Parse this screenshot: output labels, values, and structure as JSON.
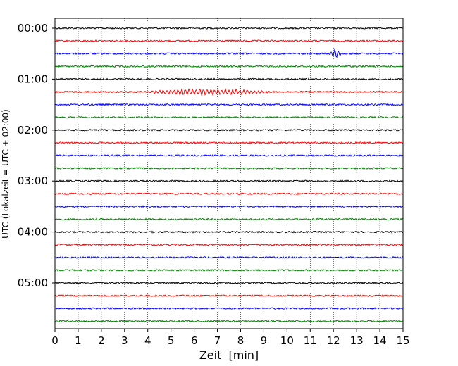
{
  "chart_data": {
    "type": "line",
    "title": "",
    "xlabel": "Zeit  [min]",
    "ylabel": "UTC (Lokalzeit = UTC + 02:00)",
    "xlim": [
      0,
      15
    ],
    "x_ticks": [
      "0",
      "1",
      "2",
      "3",
      "4",
      "5",
      "6",
      "7",
      "8",
      "9",
      "10",
      "11",
      "12",
      "13",
      "14",
      "15"
    ],
    "y_tick_labels": [
      "00:00",
      "01:00",
      "02:00",
      "03:00",
      "04:00",
      "05:00"
    ],
    "trace_interval_min": 15,
    "trace_count": 24,
    "trace_colors": [
      "#000000",
      "#ff0000",
      "#0000ff",
      "#008000"
    ],
    "grid": "vertical dotted at each minute",
    "events": [
      {
        "trace": 2,
        "start_min": 11.8,
        "end_min": 12.4,
        "amplitude": 5
      },
      {
        "trace": 5,
        "start_min": 3.5,
        "end_min": 9.6,
        "amplitude": 3.5
      }
    ]
  }
}
